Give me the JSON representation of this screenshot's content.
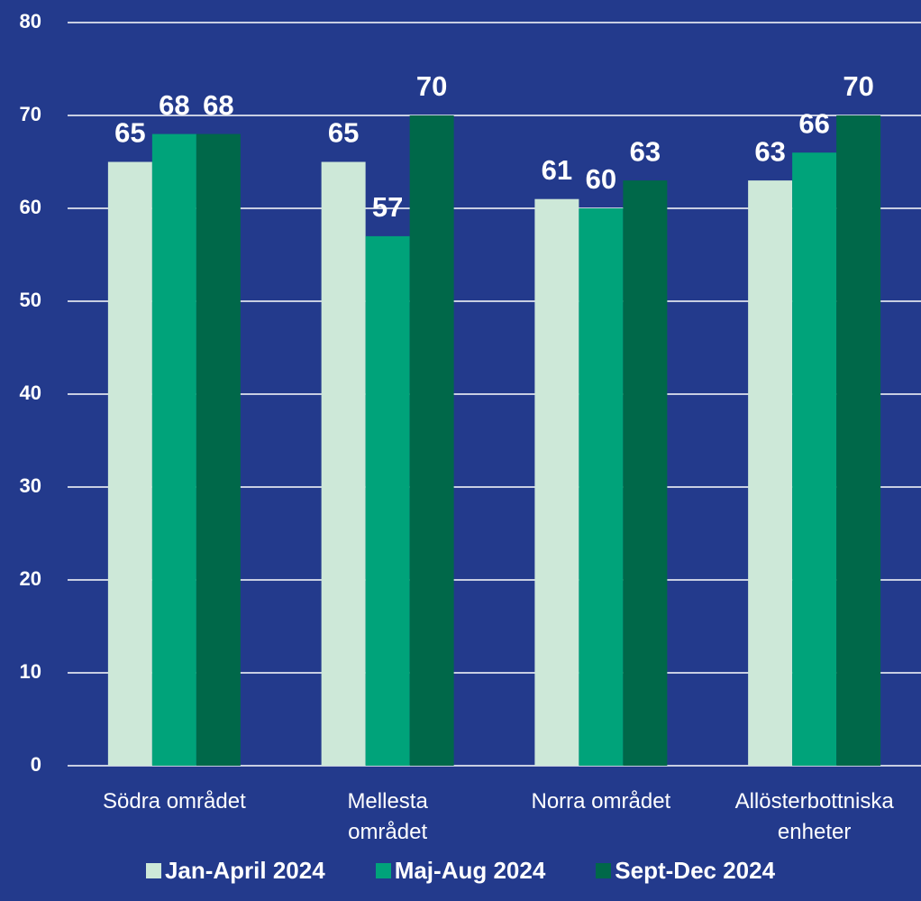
{
  "chart_data": {
    "type": "bar",
    "categories": [
      "Södra området",
      "Mellesta\nområdet",
      "Norra området",
      "Allösterbottniska\nenheter"
    ],
    "series": [
      {
        "name": "Jan-April 2024",
        "color": "#cde8d8",
        "values": [
          65,
          65,
          61,
          63
        ]
      },
      {
        "name": "Maj-Aug 2024",
        "color": "#00a37a",
        "values": [
          68,
          57,
          60,
          66
        ]
      },
      {
        "name": "Sept-Dec 2024",
        "color": "#006849",
        "values": [
          68,
          70,
          63,
          70
        ]
      }
    ],
    "ylim": [
      0,
      80
    ],
    "yticks": [
      0,
      10,
      20,
      30,
      40,
      50,
      60,
      70,
      80
    ],
    "grid": true,
    "legend": "bottom"
  }
}
